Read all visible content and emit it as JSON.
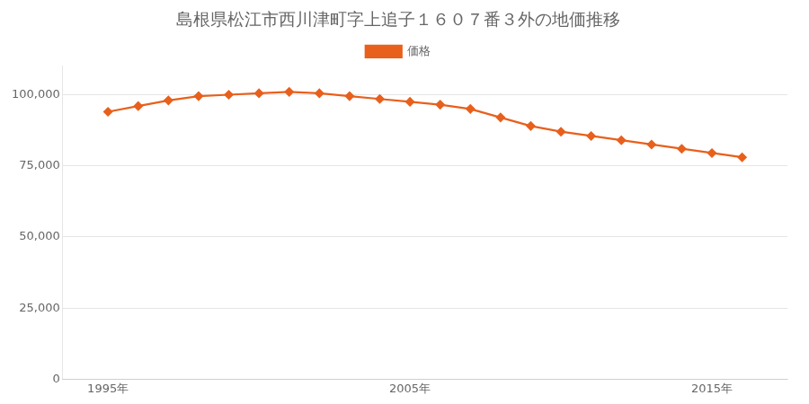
{
  "chart_data": {
    "type": "line",
    "title": "島根県松江市西川津町字上追子１６０７番３外の地価推移",
    "x": [
      1995,
      1996,
      1997,
      1998,
      1999,
      2000,
      2001,
      2002,
      2003,
      2004,
      2005,
      2006,
      2007,
      2008,
      2009,
      2010,
      2011,
      2012,
      2013,
      2014,
      2015,
      2016
    ],
    "series": [
      {
        "name": "価格",
        "color": "#e8601c",
        "marker": "diamond",
        "values": [
          94000,
          96000,
          98000,
          99500,
          100000,
          100500,
          101000,
          100500,
          99500,
          98500,
          97500,
          96500,
          95000,
          92000,
          89000,
          87000,
          85500,
          84000,
          82500,
          81000,
          79500,
          78000
        ]
      }
    ],
    "xlim": [
      1993.5,
      2017.5
    ],
    "xticks": [
      {
        "value": 1995,
        "label": "1995年"
      },
      {
        "value": 2005,
        "label": "2005年"
      },
      {
        "value": 2015,
        "label": "2015年"
      }
    ],
    "ylim": [
      0,
      110000
    ],
    "yticks": [
      0,
      {
        "value": 25000,
        "label": "25,000"
      },
      {
        "value": 50000,
        "label": "50,000"
      },
      {
        "value": 75000,
        "label": "75,000"
      },
      {
        "value": 100000,
        "label": "100,000"
      }
    ],
    "grid": "y",
    "legend": "top"
  }
}
